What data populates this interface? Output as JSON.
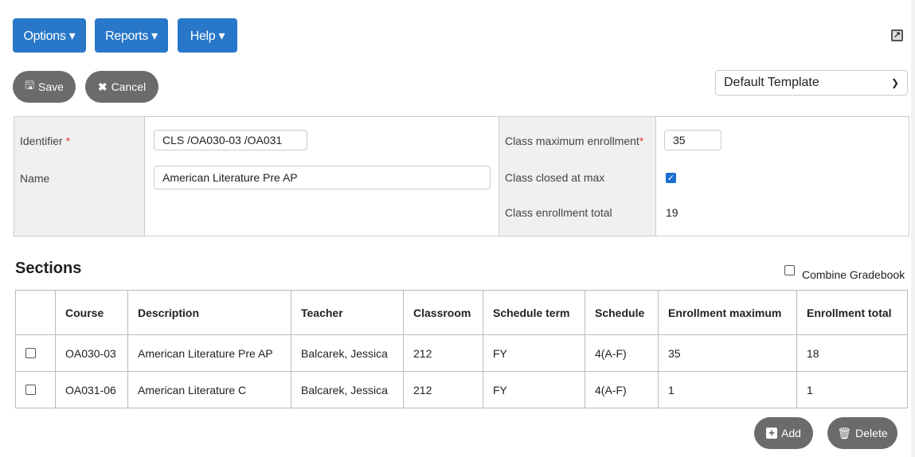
{
  "menus": [
    "Options ▾",
    "Reports ▾",
    "Help ▾"
  ],
  "toolbar": {
    "save": "Save",
    "cancel": "Cancel",
    "template": "Default Template"
  },
  "form": {
    "identifier_label": "Identifier",
    "identifier_value": "CLS /OA030-03 /OA031",
    "name_label": "Name",
    "name_value": "American Literature Pre AP",
    "max_label": "Class maximum enrollment",
    "max_value": "35",
    "closed_label": "Class closed at max",
    "closed_checked": true,
    "total_label": "Class enrollment total",
    "total_value": "19",
    "required_mark": "*"
  },
  "sections": {
    "title": "Sections",
    "combine_label": "Combine Gradebook",
    "headers": [
      "Course",
      "Description",
      "Teacher",
      "Classroom",
      "Schedule term",
      "Schedule",
      "Enrollment maximum",
      "Enrollment total"
    ],
    "rows": [
      [
        "OA030-03",
        "American Literature Pre AP",
        "Balcarek, Jessica",
        "212",
        "FY",
        "4(A-F)",
        "35",
        "18"
      ],
      [
        "OA031-06",
        "American Literature C",
        "Balcarek, Jessica",
        "212",
        "FY",
        "4(A-F)",
        "1",
        "1"
      ]
    ],
    "add": "Add",
    "delete": "Delete"
  }
}
